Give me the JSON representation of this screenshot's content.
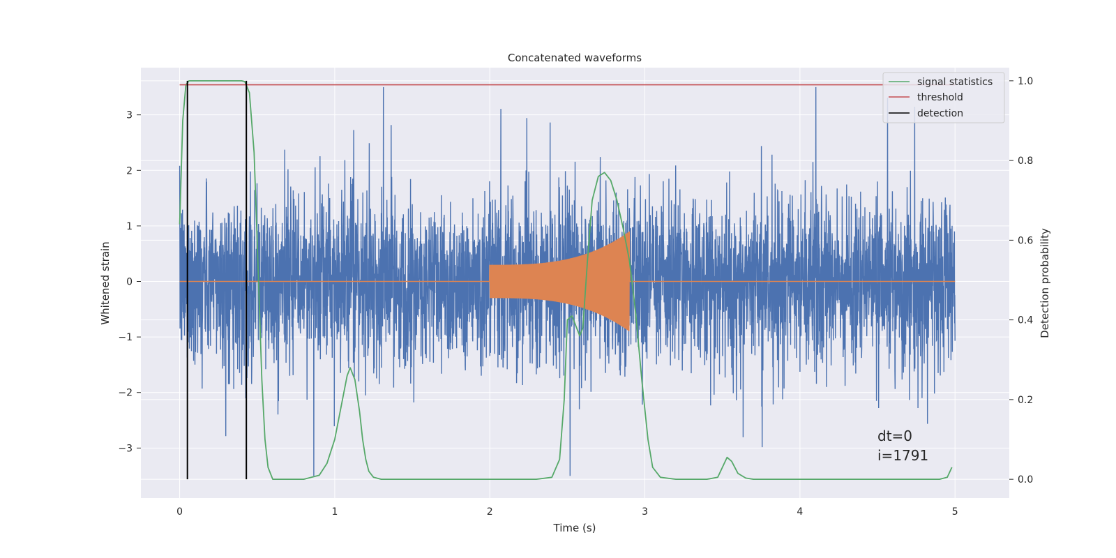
{
  "chart_data": {
    "type": "line",
    "title": "Concatenated waveforms",
    "xlabel": "Time (s)",
    "ylabel_left": "Whitened strain",
    "ylabel_right": "Detection probability",
    "xlim": [
      -0.25,
      5.35
    ],
    "ylim_left": [
      -3.9,
      3.85
    ],
    "ylim_right": [
      -0.047,
      1.033
    ],
    "xticks": [
      0,
      1,
      2,
      3,
      4,
      5
    ],
    "xtick_labels": [
      "0",
      "1",
      "2",
      "3",
      "4",
      "5"
    ],
    "yticks_left": [
      -3,
      -2,
      -1,
      0,
      1,
      2,
      3
    ],
    "ytick_labels_left": [
      "−3",
      "−2",
      "−1",
      "0",
      "1",
      "2",
      "3"
    ],
    "yticks_right": [
      0.0,
      0.2,
      0.4,
      0.6,
      0.8,
      1.0
    ],
    "ytick_labels_right": [
      "0.0",
      "0.2",
      "0.4",
      "0.6",
      "0.8",
      "1.0"
    ],
    "grid": true,
    "legend_position": "top-right",
    "legend": [
      "signal statistics",
      "threshold",
      "detection"
    ],
    "annotation": [
      "dt=0",
      "i=1791"
    ],
    "colors": {
      "background": "#eaeaf2",
      "grid": "#ffffff",
      "noisy_strain": "#4c72b0",
      "template_waveform": "#dd8452",
      "signal_statistics": "#55a868",
      "threshold": "#c44e52",
      "detection": "#000000"
    },
    "series": [
      {
        "name": "",
        "role": "noisy_strain",
        "axis": "left",
        "x_range": [
          0,
          5
        ],
        "typical_amplitude": 0.75,
        "peak_amplitude": 3.5
      },
      {
        "name": "",
        "role": "template_waveform",
        "axis": "left",
        "x_range": [
          0,
          5
        ],
        "chirp_start": 2.0,
        "chirp_end": 2.9,
        "amplitude_start": 0.3,
        "amplitude_end": 0.9
      },
      {
        "name": "signal statistics",
        "role": "signal_statistics",
        "axis": "right",
        "x": [
          0.0,
          0.02,
          0.04,
          0.06,
          0.08,
          0.1,
          0.2,
          0.3,
          0.4,
          0.42,
          0.45,
          0.48,
          0.5,
          0.53,
          0.55,
          0.57,
          0.6,
          0.7,
          0.8,
          0.9,
          0.95,
          1.0,
          1.05,
          1.08,
          1.1,
          1.13,
          1.16,
          1.18,
          1.2,
          1.22,
          1.25,
          1.3,
          1.5,
          2.0,
          2.3,
          2.4,
          2.45,
          2.48,
          2.5,
          2.53,
          2.56,
          2.58,
          2.6,
          2.63,
          2.66,
          2.7,
          2.74,
          2.78,
          2.82,
          2.86,
          2.9,
          2.94,
          2.98,
          3.02,
          3.05,
          3.1,
          3.2,
          3.4,
          3.47,
          3.5,
          3.53,
          3.56,
          3.6,
          3.65,
          3.7,
          4.0,
          4.5,
          4.8,
          4.9,
          4.95,
          4.98
        ],
        "values": [
          0.64,
          0.9,
          0.99,
          1.0,
          1.0,
          1.0,
          1.0,
          1.0,
          1.0,
          0.998,
          0.97,
          0.82,
          0.6,
          0.25,
          0.1,
          0.03,
          0.0,
          0.0,
          0.0,
          0.01,
          0.04,
          0.1,
          0.2,
          0.26,
          0.28,
          0.25,
          0.17,
          0.1,
          0.05,
          0.02,
          0.005,
          0.0,
          0.0,
          0.0,
          0.0,
          0.005,
          0.05,
          0.2,
          0.4,
          0.41,
          0.38,
          0.36,
          0.38,
          0.55,
          0.7,
          0.76,
          0.77,
          0.75,
          0.7,
          0.63,
          0.55,
          0.42,
          0.25,
          0.1,
          0.03,
          0.005,
          0.0,
          0.0,
          0.005,
          0.03,
          0.055,
          0.045,
          0.015,
          0.003,
          0.0,
          0.0,
          0.0,
          0.0,
          0.0,
          0.005,
          0.03
        ]
      },
      {
        "name": "threshold",
        "role": "threshold",
        "axis": "right",
        "x": [
          0,
          5
        ],
        "values": [
          0.99,
          0.99
        ]
      },
      {
        "name": "detection",
        "role": "detection",
        "axis": "right",
        "type": "vlines",
        "x": [
          0.05,
          0.43
        ],
        "y_range": [
          0,
          1
        ]
      }
    ]
  }
}
